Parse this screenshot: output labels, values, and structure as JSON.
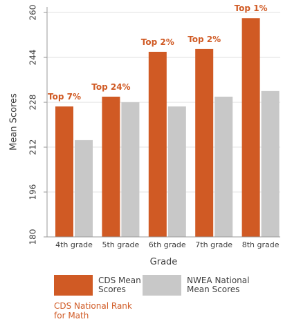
{
  "colors": {
    "cds": "#d05a24",
    "nwea": "#c8c8c8",
    "axis": "#9a9a9a",
    "grid": "#e3e3e3",
    "text": "#3d3d3d",
    "accent": "#d05a24"
  },
  "chart_data": {
    "type": "bar",
    "categories": [
      "4th grade",
      "5th grade",
      "6th grade",
      "7th grade",
      "8th grade"
    ],
    "series": [
      {
        "name": "CDS Mean Scores",
        "values": [
          226.5,
          230,
          246,
          247,
          258
        ]
      },
      {
        "name": "NWEA National Mean Scores",
        "values": [
          214.5,
          228,
          226.5,
          230,
          232
        ]
      }
    ],
    "rank_labels": [
      "Top 7%",
      "Top 24%",
      "Top 2%",
      "Top 2%",
      "Top 1%"
    ],
    "ylabel": "Mean Scores",
    "xlabel": "Grade",
    "yticks": [
      180,
      196,
      212,
      228,
      244,
      260
    ],
    "ylim": [
      180,
      262
    ],
    "grid": true
  },
  "legend": {
    "cds_label": "CDS Mean\nScores",
    "nwea_label": "NWEA National\nMean Scores",
    "rank_note": "CDS National Rank\nfor Math"
  }
}
